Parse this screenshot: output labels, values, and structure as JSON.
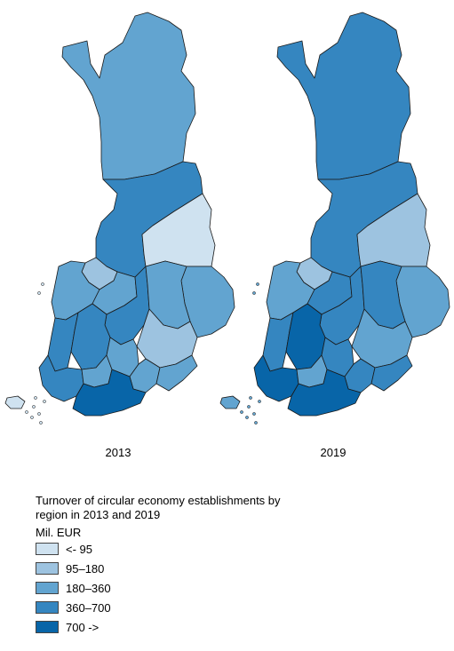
{
  "legend": {
    "title": "Turnover of circular economy establishments by region in 2013 and 2019",
    "unit": "Mil. EUR",
    "classes": [
      {
        "label": "<- 95",
        "color": "#cfe2f0"
      },
      {
        "label": "95–180",
        "color": "#9dc3e0"
      },
      {
        "label": "180–360",
        "color": "#62a4d0"
      },
      {
        "label": "360–700",
        "color": "#3586c0"
      },
      {
        "label": "700 ->",
        "color": "#0865a8"
      }
    ]
  },
  "maps": [
    {
      "year": "2013",
      "regions": {
        "lapland": 2,
        "north-ostrobothnia": 3,
        "kainuu": 0,
        "north-karelia": 2,
        "central-ostrobothnia": 1,
        "ostrobothnia": 2,
        "south-ostrobothnia": 2,
        "central-finland": 3,
        "north-savo": 2,
        "south-savo": 1,
        "satakunta": 3,
        "pirkanmaa": 3,
        "southwest-finland": 3,
        "kanta-hame": 2,
        "paijat-hame": 2,
        "kymenlaakso": 2,
        "south-karelia": 2,
        "uusimaa": 4,
        "aland": 0
      }
    },
    {
      "year": "2019",
      "regions": {
        "lapland": 3,
        "north-ostrobothnia": 3,
        "kainuu": 1,
        "north-karelia": 2,
        "central-ostrobothnia": 1,
        "ostrobothnia": 2,
        "south-ostrobothnia": 3,
        "central-finland": 3,
        "north-savo": 3,
        "south-savo": 2,
        "satakunta": 3,
        "pirkanmaa": 4,
        "southwest-finland": 4,
        "kanta-hame": 2,
        "paijat-hame": 3,
        "kymenlaakso": 3,
        "south-karelia": 3,
        "uusimaa": 4,
        "aland": 2
      }
    }
  ]
}
